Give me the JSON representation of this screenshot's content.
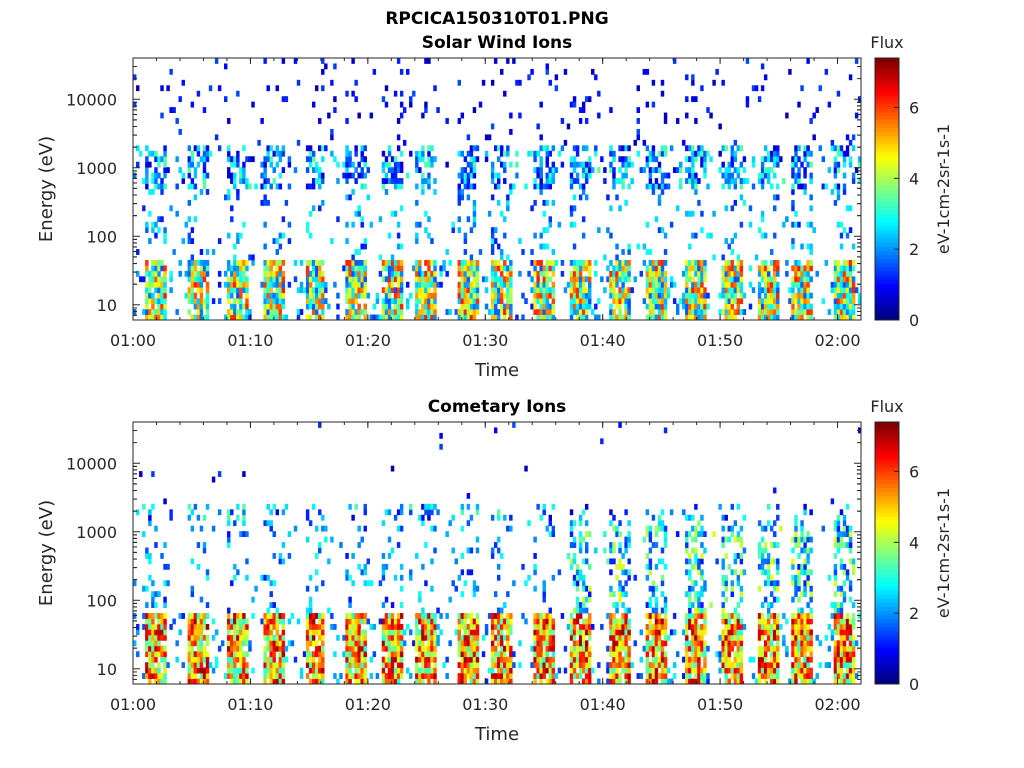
{
  "figure_title": "RPCICA150310T01.PNG",
  "colors": {
    "axis": "#262626",
    "background": "#ffffff"
  },
  "chart_data": [
    {
      "type": "heatmap",
      "title": "Solar Wind Ions",
      "xlabel": "Time",
      "ylabel": "Energy (eV)",
      "x_ticks": [
        "01:00",
        "01:10",
        "01:20",
        "01:30",
        "01:40",
        "01:50",
        "02:00"
      ],
      "x_range_minutes": [
        0,
        62
      ],
      "y_ticks": [
        "10",
        "100",
        "1000",
        "10000"
      ],
      "y_range": [
        6,
        40000
      ],
      "y_scale": "log",
      "colorbar": {
        "label_top": "Flux",
        "label": "eV-1cm-2sr-1s-1",
        "ticks": [
          "0",
          "2",
          "4",
          "6"
        ],
        "range": [
          0,
          7.4
        ]
      },
      "features": {
        "low_energy_band_eV": [
          6,
          45
        ],
        "mid_energy_band_eV": [
          500,
          2000
        ],
        "scattered_high_energy": true,
        "burst_minutes": [
          2,
          5.5,
          9,
          12,
          15.5,
          19,
          22,
          25,
          28.5,
          31.5,
          35,
          38,
          41.5,
          44.5,
          48,
          51,
          54,
          57,
          60.5
        ]
      }
    },
    {
      "type": "heatmap",
      "title": "Cometary Ions",
      "xlabel": "Time",
      "ylabel": "Energy (eV)",
      "x_ticks": [
        "01:00",
        "01:10",
        "01:20",
        "01:30",
        "01:40",
        "01:50",
        "02:00"
      ],
      "x_range_minutes": [
        0,
        62
      ],
      "y_ticks": [
        "10",
        "100",
        "1000",
        "10000"
      ],
      "y_range": [
        6,
        40000
      ],
      "y_scale": "log",
      "colorbar": {
        "label_top": "Flux",
        "label": "eV-1cm-2sr-1s-1",
        "ticks": [
          "0",
          "2",
          "4",
          "6"
        ],
        "range": [
          0,
          7.4
        ]
      },
      "features": {
        "low_energy_band_eV": [
          6,
          60
        ],
        "mid_energy_band_eV": [
          1500,
          2500
        ],
        "scattered_high_energy": false,
        "burst_minutes": [
          2,
          5.5,
          9,
          12,
          15.5,
          19,
          22,
          25,
          28.5,
          31.5,
          35,
          38,
          41.5,
          44.5,
          48,
          51,
          54,
          57,
          60.5
        ]
      }
    }
  ]
}
